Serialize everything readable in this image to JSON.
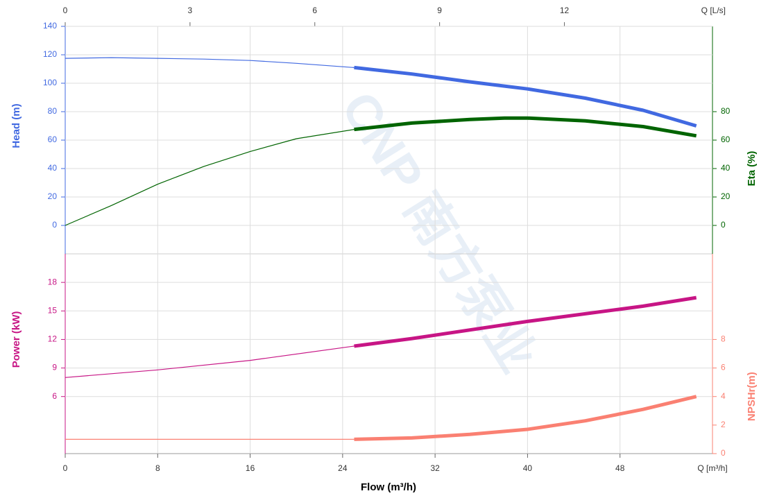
{
  "chart_data": {
    "type": "line",
    "watermark": "CNP 南方泵业",
    "xlabel": "Flow (m³/h)",
    "xunit": "Q [m³/h]",
    "xlim": [
      0,
      56
    ],
    "xticks": [
      0,
      8,
      16,
      24,
      32,
      40,
      48
    ],
    "x2unit": "Q [L/s]",
    "x2lim": [
      0,
      15.56
    ],
    "x2ticks": [
      0,
      3,
      6,
      9,
      12
    ],
    "duty_from": 25,
    "grid": true,
    "panels": [
      {
        "ylabel": "Head (m)",
        "ylim": [
          -20,
          140
        ],
        "yticks": [
          0,
          20,
          40,
          60,
          80,
          100,
          120,
          140
        ],
        "y2label": "Eta (%)",
        "y2lim": [
          -20,
          140
        ],
        "y2ticks": [
          0,
          20,
          40,
          60,
          80
        ],
        "series": [
          {
            "axis": "y",
            "color": "#4169e1",
            "x": [
              0,
              4,
              8,
              12,
              16,
              20,
              25,
              30,
              35,
              40,
              45,
              50,
              54.6
            ],
            "values": [
              117.5,
              118,
              117.5,
              117,
              116,
              114,
              111,
              106.5,
              101,
              96,
              89.5,
              81,
              70
            ]
          },
          {
            "axis": "y2",
            "color": "#006400",
            "x": [
              0,
              4,
              8,
              12,
              16,
              20,
              25,
              30,
              35,
              38,
              40,
              45,
              50,
              54.6
            ],
            "values": [
              0,
              14,
              29,
              41.5,
              52,
              61,
              67.5,
              72,
              74.5,
              75.5,
              75.5,
              73.5,
              69.5,
              63
            ]
          }
        ]
      },
      {
        "ylabel": "Power (kW)",
        "ylim": [
          0,
          21
        ],
        "yticks": [
          6,
          9,
          12,
          15,
          18
        ],
        "y2label": "NPSHr(m)",
        "y2lim": [
          0,
          14
        ],
        "y2ticks": [
          0,
          2,
          4,
          6,
          8
        ],
        "series": [
          {
            "axis": "y",
            "color": "#c71585",
            "x": [
              0,
              8,
              16,
              25,
              30,
              40,
              50,
              54.6
            ],
            "values": [
              8,
              8.8,
              9.8,
              11.3,
              12.1,
              13.9,
              15.5,
              16.4
            ]
          },
          {
            "axis": "y2",
            "color": "#fa8072",
            "x": [
              0,
              25,
              30,
              35,
              40,
              45,
              50,
              54.6
            ],
            "values": [
              1,
              1,
              1.1,
              1.35,
              1.7,
              2.3,
              3.1,
              4
            ]
          }
        ]
      }
    ]
  }
}
